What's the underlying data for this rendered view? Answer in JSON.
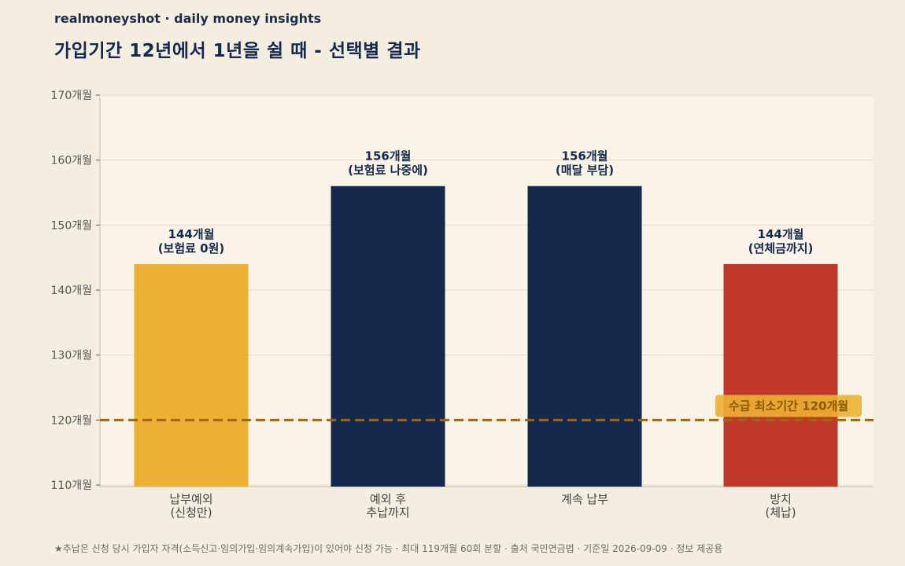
{
  "header": {
    "brand": "realmoneyshot · daily money insights",
    "title": "가입기간 12년에서 1년을 쉴 때 - 선택별 결과"
  },
  "footnote": "★추납은 신청 당시 가입자 자격(소득신고·임의가입·임의계속가입)이 있어야 신청 가능 · 최대 119개월 60회 분할 · 출처 국민연금법 · 기준일 2026-09-09 · 정보 제공용",
  "colors": {
    "background": "#f4eee0",
    "plot_area": "#faf4e8",
    "yellow": "#ecb132",
    "navy": "#15294d",
    "red": "#c0392b",
    "reference_line": "#9a6a10",
    "reference_label_bg": "#ecb132"
  },
  "chart_data": {
    "type": "bar",
    "categories": [
      [
        "납부예외",
        "(신청만)"
      ],
      [
        "예외 후",
        "추납까지"
      ],
      [
        "계속 납부"
      ],
      [
        "방치",
        "(체납)"
      ]
    ],
    "values": [
      144,
      156,
      156,
      144
    ],
    "bar_colors": [
      "#ecb132",
      "#15294d",
      "#15294d",
      "#c0392b"
    ],
    "data_labels": [
      [
        "144개월",
        "(보험료 0원)"
      ],
      [
        "156개월",
        "(보험료 나중에)"
      ],
      [
        "156개월",
        "(매달 부담)"
      ],
      [
        "144개월",
        "(연체금까지)"
      ]
    ],
    "ylim": [
      110,
      170
    ],
    "y_ticks": [
      110,
      120,
      130,
      140,
      150,
      160,
      170
    ],
    "y_tick_suffix": "개월",
    "grid": true,
    "reference_line": {
      "value": 120,
      "label": "수급 최소기간 120개월"
    }
  }
}
